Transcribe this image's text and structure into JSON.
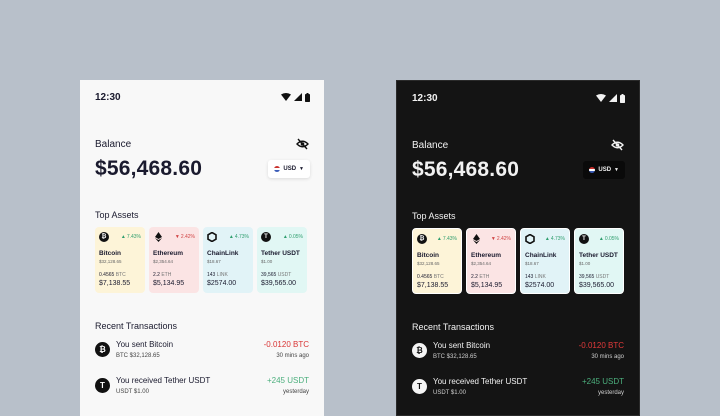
{
  "colors": {
    "background": "#b8c0ca",
    "light_bg": "#f8f8f8",
    "dark_bg": "#141414",
    "up": "#2f9e6e",
    "down": "#d14545",
    "negative_amount": "#e23a3a",
    "positive_amount": "#4caf7d"
  },
  "status_bar": {
    "time": "12:30",
    "icons": [
      "wifi-icon",
      "cell-signal-icon",
      "battery-icon"
    ]
  },
  "balance": {
    "label": "Balance",
    "value": "$56,468.60",
    "visibility_icon": "eye-off-icon",
    "currency": "USD"
  },
  "top_assets": {
    "title": "Top Assets",
    "assets": [
      {
        "name": "Bitcoin",
        "icon": "bitcoin-icon",
        "change": "7.43%",
        "direction": "up",
        "price": "$32,128.65",
        "holding": "0.4565",
        "symbol": "BTC",
        "value": "$7,138.55",
        "card_color": "#fdf4d8"
      },
      {
        "name": "Ethereum",
        "icon": "ethereum-icon",
        "change": "2.42%",
        "direction": "down",
        "price": "$2,354.64",
        "holding": "2.2",
        "symbol": "ETH",
        "value": "$5,134.95",
        "card_color": "#fbe4e4"
      },
      {
        "name": "ChainLink",
        "icon": "chainlink-icon",
        "change": "4.73%",
        "direction": "up",
        "price": "$18.67",
        "holding": "143",
        "symbol": "LINK",
        "value": "$2574.00",
        "card_color": "#e1f3f7"
      },
      {
        "name": "Tether USDT",
        "icon": "tether-icon",
        "change": "0.05%",
        "direction": "up",
        "price": "$1.00",
        "holding": "39,565",
        "symbol": "USDT",
        "value": "$39,565.00",
        "card_color": "#e1f7f4"
      }
    ]
  },
  "recent_transactions": {
    "title": "Recent Transactions",
    "items": [
      {
        "title": "You sent Bitcoin",
        "icon": "bitcoin-icon",
        "symbol": "BTC",
        "price": "$32,128.65",
        "amount": "-0.0120 BTC",
        "time": "30 mins ago",
        "kind": "negative"
      },
      {
        "title": "You received Tether USDT",
        "icon": "tether-icon",
        "symbol": "USDT",
        "price": "$1.00",
        "amount": "+245 USDT",
        "time": "yesterday",
        "kind": "positive"
      }
    ]
  }
}
